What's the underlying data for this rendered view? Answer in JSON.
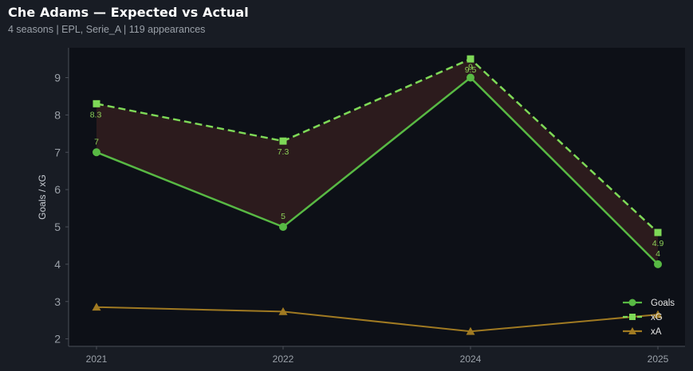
{
  "header": {
    "title": "Che Adams — Expected vs Actual",
    "subtitle": "4 seasons | EPL, Serie_A | 119 appearances"
  },
  "colors": {
    "background": "#181c24",
    "plot_background": "#0d1017",
    "goals": "#58b944",
    "xg": "#7ed957",
    "xa": "#a07a22",
    "gap_fill": "#2e1c1e",
    "tick_text": "#9aa0a8",
    "label_text": "#c9cdd3",
    "axis": "#4a4f58"
  },
  "chart_data": {
    "type": "line",
    "categories": [
      "2021",
      "2022",
      "2024",
      "2025"
    ],
    "ylabel": "Goals / xG",
    "xlabel": "",
    "ylim": [
      1.8,
      9.8
    ],
    "yticks": [
      2,
      3,
      4,
      5,
      6,
      7,
      8,
      9
    ],
    "series": [
      {
        "name": "Goals",
        "values": [
          7,
          5,
          9,
          4
        ],
        "labels": [
          "7",
          "5",
          "9",
          "4"
        ],
        "marker": "circle",
        "style": "solid",
        "color": "#58b944"
      },
      {
        "name": "xG",
        "values": [
          8.3,
          7.3,
          9.5,
          4.85
        ],
        "labels": [
          "8.3",
          "7.3",
          "9.5",
          "4.9"
        ],
        "marker": "square",
        "style": "dashed",
        "color": "#7ed957"
      },
      {
        "name": "xA",
        "values": [
          2.85,
          2.73,
          2.2,
          2.65
        ],
        "marker": "triangle",
        "style": "solid",
        "color": "#a07a22"
      }
    ],
    "legend_position": "bottom-right",
    "grid": false
  }
}
